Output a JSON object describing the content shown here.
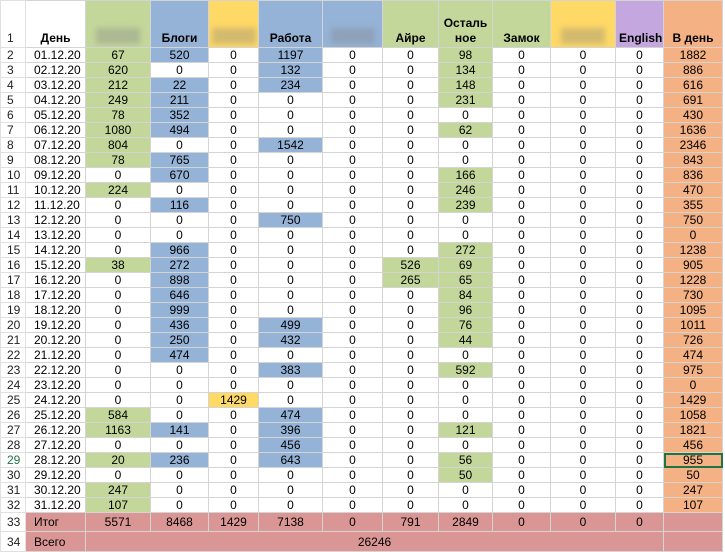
{
  "header": {
    "row_number": 1,
    "columns": [
      {
        "label": "День",
        "color": "#ffffff"
      },
      {
        "label": null,
        "color": "#c4d79b",
        "blurred": true
      },
      {
        "label": "Блоги",
        "color": "#95b3d7"
      },
      {
        "label": null,
        "color": "#ffd966",
        "blurred": true
      },
      {
        "label": "Работа",
        "color": "#95b3d7"
      },
      {
        "label": null,
        "color": "#95b3d7",
        "blurred": true
      },
      {
        "label": "Айре",
        "color": "#c4d79b"
      },
      {
        "label": "Остальное",
        "color": "#c4d79b"
      },
      {
        "label": "Замок",
        "color": "#c4d79b"
      },
      {
        "label": null,
        "color": "#ffd966",
        "blurred": true
      },
      {
        "label": "English",
        "color": "#c5a7e0"
      },
      {
        "label": "В день",
        "color": "#f4b183"
      }
    ]
  },
  "rows": [
    {
      "n": 2,
      "date": "01.12.20",
      "values": [
        67,
        520,
        0,
        1197,
        0,
        0,
        98,
        0,
        0,
        0,
        1882
      ]
    },
    {
      "n": 3,
      "date": "02.12.20",
      "values": [
        620,
        0,
        0,
        132,
        0,
        0,
        134,
        0,
        0,
        0,
        886
      ]
    },
    {
      "n": 4,
      "date": "03.12.20",
      "values": [
        212,
        22,
        0,
        234,
        0,
        0,
        148,
        0,
        0,
        0,
        616
      ]
    },
    {
      "n": 5,
      "date": "04.12.20",
      "values": [
        249,
        211,
        0,
        0,
        0,
        0,
        231,
        0,
        0,
        0,
        691
      ]
    },
    {
      "n": 6,
      "date": "05.12.20",
      "values": [
        78,
        352,
        0,
        0,
        0,
        0,
        0,
        0,
        0,
        0,
        430
      ]
    },
    {
      "n": 7,
      "date": "06.12.20",
      "values": [
        1080,
        494,
        0,
        0,
        0,
        0,
        62,
        0,
        0,
        0,
        1636
      ]
    },
    {
      "n": 8,
      "date": "07.12.20",
      "values": [
        804,
        0,
        0,
        1542,
        0,
        0,
        0,
        0,
        0,
        0,
        2346
      ]
    },
    {
      "n": 9,
      "date": "08.12.20",
      "values": [
        78,
        765,
        0,
        0,
        0,
        0,
        0,
        0,
        0,
        0,
        843
      ]
    },
    {
      "n": 10,
      "date": "09.12.20",
      "values": [
        0,
        670,
        0,
        0,
        0,
        0,
        166,
        0,
        0,
        0,
        836
      ]
    },
    {
      "n": 11,
      "date": "10.12.20",
      "values": [
        224,
        0,
        0,
        0,
        0,
        0,
        246,
        0,
        0,
        0,
        470
      ]
    },
    {
      "n": 12,
      "date": "11.12.20",
      "values": [
        0,
        116,
        0,
        0,
        0,
        0,
        239,
        0,
        0,
        0,
        355
      ]
    },
    {
      "n": 13,
      "date": "12.12.20",
      "values": [
        0,
        0,
        0,
        750,
        0,
        0,
        0,
        0,
        0,
        0,
        750
      ]
    },
    {
      "n": 14,
      "date": "13.12.20",
      "values": [
        0,
        0,
        0,
        0,
        0,
        0,
        0,
        0,
        0,
        0,
        0
      ]
    },
    {
      "n": 15,
      "date": "14.12.20",
      "values": [
        0,
        966,
        0,
        0,
        0,
        0,
        272,
        0,
        0,
        0,
        1238
      ]
    },
    {
      "n": 16,
      "date": "15.12.20",
      "values": [
        38,
        272,
        0,
        0,
        0,
        526,
        69,
        0,
        0,
        0,
        905
      ]
    },
    {
      "n": 17,
      "date": "16.12.20",
      "values": [
        0,
        898,
        0,
        0,
        0,
        265,
        65,
        0,
        0,
        0,
        1228
      ]
    },
    {
      "n": 18,
      "date": "17.12.20",
      "values": [
        0,
        646,
        0,
        0,
        0,
        0,
        84,
        0,
        0,
        0,
        730
      ]
    },
    {
      "n": 19,
      "date": "18.12.20",
      "values": [
        0,
        999,
        0,
        0,
        0,
        0,
        96,
        0,
        0,
        0,
        1095
      ]
    },
    {
      "n": 20,
      "date": "19.12.20",
      "values": [
        0,
        436,
        0,
        499,
        0,
        0,
        76,
        0,
        0,
        0,
        1011
      ]
    },
    {
      "n": 21,
      "date": "20.12.20",
      "values": [
        0,
        250,
        0,
        432,
        0,
        0,
        44,
        0,
        0,
        0,
        726
      ]
    },
    {
      "n": 22,
      "date": "21.12.20",
      "values": [
        0,
        474,
        0,
        0,
        0,
        0,
        0,
        0,
        0,
        0,
        474
      ]
    },
    {
      "n": 23,
      "date": "22.12.20",
      "values": [
        0,
        0,
        0,
        383,
        0,
        0,
        592,
        0,
        0,
        0,
        975
      ]
    },
    {
      "n": 24,
      "date": "23.12.20",
      "values": [
        0,
        0,
        0,
        0,
        0,
        0,
        0,
        0,
        0,
        0,
        0
      ]
    },
    {
      "n": 25,
      "date": "24.12.20",
      "values": [
        0,
        0,
        1429,
        0,
        0,
        0,
        0,
        0,
        0,
        0,
        1429
      ]
    },
    {
      "n": 26,
      "date": "25.12.20",
      "values": [
        584,
        0,
        0,
        474,
        0,
        0,
        0,
        0,
        0,
        0,
        1058
      ]
    },
    {
      "n": 27,
      "date": "26.12.20",
      "values": [
        1163,
        141,
        0,
        396,
        0,
        0,
        121,
        0,
        0,
        0,
        1821
      ]
    },
    {
      "n": 28,
      "date": "27.12.20",
      "values": [
        0,
        0,
        0,
        456,
        0,
        0,
        0,
        0,
        0,
        0,
        456
      ]
    },
    {
      "n": 29,
      "date": "28.12.20",
      "values": [
        20,
        236,
        0,
        643,
        0,
        0,
        56,
        0,
        0,
        0,
        955
      ]
    },
    {
      "n": 30,
      "date": "29.12.20",
      "values": [
        0,
        0,
        0,
        0,
        0,
        0,
        50,
        0,
        0,
        0,
        50
      ]
    },
    {
      "n": 31,
      "date": "30.12.20",
      "values": [
        247,
        0,
        0,
        0,
        0,
        0,
        0,
        0,
        0,
        0,
        247
      ]
    },
    {
      "n": 32,
      "date": "31.12.20",
      "values": [
        107,
        0,
        0,
        0,
        0,
        0,
        0,
        0,
        0,
        0,
        107
      ]
    }
  ],
  "total": {
    "n": 33,
    "label": "Итог",
    "values": [
      5571,
      8468,
      1429,
      7138,
      0,
      791,
      2849,
      0,
      0,
      0
    ],
    "color": "#da9694"
  },
  "grand_total": {
    "n": 34,
    "label": "Всего",
    "value": 26246,
    "color": "#da9694"
  }
}
